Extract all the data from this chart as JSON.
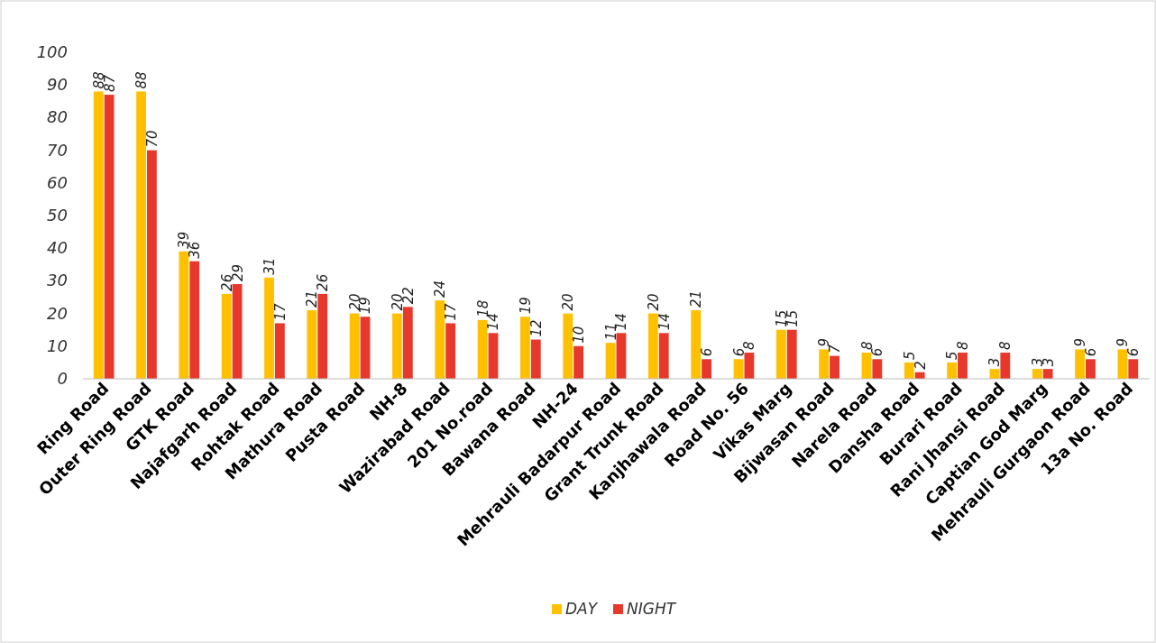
{
  "chart_data": {
    "type": "bar",
    "categories": [
      "Ring Road",
      "Outer Ring Road",
      "GTK Road",
      "Najafgarh Road",
      "Rohtak Road",
      "Mathura Road",
      "Pusta Road",
      "NH-8",
      "Wazirabad Road",
      "201 No.road",
      "Bawana Road",
      "NH-24",
      "Mehrauli Badarpur Road",
      "Grant Trunk Road",
      "Kanjhawala Road",
      "Road No. 56",
      "Vikas Marg",
      "Bijwasan Road",
      "Narela Road",
      "Dansha Road",
      "Burari Road",
      "Rani Jhansi Road",
      "Captian God Marg",
      "Mehrauli Gurgaon Road",
      "13a No. Road"
    ],
    "series": [
      {
        "name": "DAY",
        "color": "#ffc000",
        "values": [
          88,
          88,
          39,
          26,
          31,
          21,
          20,
          20,
          24,
          18,
          19,
          20,
          11,
          20,
          21,
          6,
          15,
          9,
          8,
          5,
          5,
          3,
          3,
          9,
          9
        ]
      },
      {
        "name": "NIGHT",
        "color": "#e8382c",
        "values": [
          87,
          70,
          36,
          29,
          17,
          26,
          19,
          22,
          17,
          14,
          12,
          10,
          14,
          14,
          6,
          8,
          15,
          7,
          6,
          2,
          8,
          8,
          3,
          6,
          6
        ]
      }
    ],
    "ylim": [
      0,
      100
    ],
    "yticks": [
      0,
      10,
      20,
      30,
      40,
      50,
      60,
      70,
      80,
      90,
      100
    ],
    "data_labels": true,
    "legend": "bottom",
    "grid": false
  }
}
